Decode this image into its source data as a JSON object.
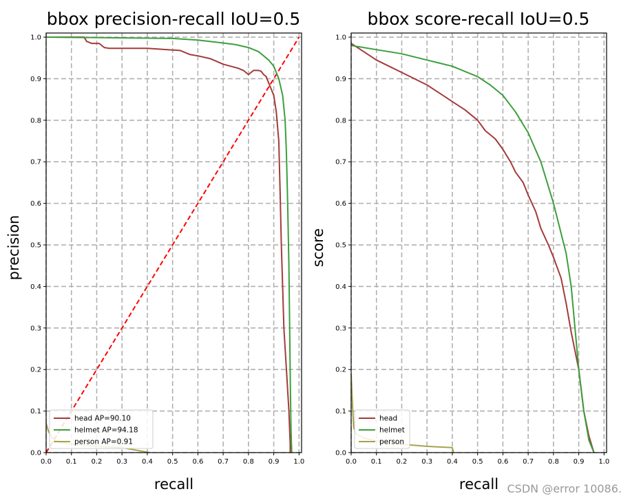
{
  "colors": {
    "head": "#a33a3a",
    "helmet": "#3c9e3c",
    "person": "#a8a24a",
    "diagonal": "#ff0000",
    "grid": "#b0b0b0"
  },
  "watermark": "CSDN @error 10086.",
  "chart_data": [
    {
      "type": "line",
      "title": "bbox precision-recall IoU=0.5",
      "xlabel": "recall",
      "ylabel": "precision",
      "xlim": [
        0,
        1.01
      ],
      "ylim": [
        0,
        1.01
      ],
      "xticks": [
        "0.0",
        "0.1",
        "0.2",
        "0.3",
        "0.4",
        "0.5",
        "0.6",
        "0.7",
        "0.8",
        "0.9",
        "1.0"
      ],
      "yticks": [
        "0.0",
        "0.1",
        "0.2",
        "0.3",
        "0.4",
        "0.5",
        "0.6",
        "0.7",
        "0.8",
        "0.9",
        "1.0"
      ],
      "grid": true,
      "legend_position": "lower-left",
      "diagonal": {
        "x": [
          0,
          1
        ],
        "y": [
          0,
          1
        ],
        "style": "dashed"
      },
      "series": [
        {
          "name": "head AP=90.10",
          "color_key": "head",
          "x": [
            0,
            0.15,
            0.16,
            0.18,
            0.19,
            0.21,
            0.23,
            0.25,
            0.4,
            0.53,
            0.57,
            0.6,
            0.65,
            0.7,
            0.73,
            0.76,
            0.78,
            0.8,
            0.82,
            0.84,
            0.85,
            0.86,
            0.87,
            0.88,
            0.89,
            0.9,
            0.91,
            0.92,
            0.925,
            0.93,
            0.935,
            0.94,
            0.95,
            0.96,
            0.965,
            0.965
          ],
          "y": [
            1.0,
            1.0,
            0.99,
            0.985,
            0.985,
            0.985,
            0.975,
            0.973,
            0.973,
            0.968,
            0.958,
            0.955,
            0.948,
            0.935,
            0.93,
            0.925,
            0.92,
            0.91,
            0.92,
            0.92,
            0.918,
            0.91,
            0.905,
            0.89,
            0.875,
            0.86,
            0.82,
            0.75,
            0.63,
            0.5,
            0.4,
            0.3,
            0.2,
            0.1,
            0.02,
            0.0
          ]
        },
        {
          "name": "helmet AP=94.18",
          "color_key": "helmet",
          "x": [
            0,
            0.35,
            0.5,
            0.6,
            0.7,
            0.75,
            0.8,
            0.84,
            0.86,
            0.88,
            0.9,
            0.92,
            0.935,
            0.945,
            0.95,
            0.955,
            0.96,
            0.963,
            0.966,
            0.968,
            0.97,
            0.971
          ],
          "y": [
            1.0,
            0.998,
            0.997,
            0.993,
            0.986,
            0.982,
            0.975,
            0.965,
            0.955,
            0.945,
            0.93,
            0.9,
            0.86,
            0.8,
            0.72,
            0.6,
            0.45,
            0.3,
            0.15,
            0.06,
            0.02,
            0.0
          ]
        },
        {
          "name": "person AP=0.91",
          "color_key": "person",
          "x": [
            0,
            0.01,
            0.02,
            0.03,
            0.05,
            0.1,
            0.2,
            0.3,
            0.41
          ],
          "y": [
            0.07,
            0.05,
            0.04,
            0.032,
            0.025,
            0.02,
            0.015,
            0.012,
            0.0
          ]
        }
      ]
    },
    {
      "type": "line",
      "title": "bbox score-recall IoU=0.5",
      "xlabel": "recall",
      "ylabel": "score",
      "xlim": [
        0,
        1.01
      ],
      "ylim": [
        0,
        1.01
      ],
      "xticks": [
        "0.0",
        "0.1",
        "0.2",
        "0.3",
        "0.4",
        "0.5",
        "0.6",
        "0.7",
        "0.8",
        "0.9",
        "1.0"
      ],
      "yticks": [
        "0.0",
        "0.1",
        "0.2",
        "0.3",
        "0.4",
        "0.5",
        "0.6",
        "0.7",
        "0.8",
        "0.9",
        "1.0"
      ],
      "grid": true,
      "legend_position": "lower-left",
      "series": [
        {
          "name": "head",
          "color_key": "head",
          "x": [
            0,
            0.05,
            0.1,
            0.15,
            0.2,
            0.25,
            0.3,
            0.35,
            0.4,
            0.45,
            0.5,
            0.53,
            0.57,
            0.6,
            0.63,
            0.65,
            0.68,
            0.7,
            0.73,
            0.75,
            0.78,
            0.8,
            0.83,
            0.85,
            0.87,
            0.9,
            0.92,
            0.94,
            0.96
          ],
          "y": [
            0.985,
            0.965,
            0.945,
            0.93,
            0.915,
            0.9,
            0.885,
            0.865,
            0.845,
            0.825,
            0.8,
            0.775,
            0.755,
            0.73,
            0.7,
            0.675,
            0.65,
            0.62,
            0.58,
            0.54,
            0.5,
            0.47,
            0.42,
            0.36,
            0.29,
            0.2,
            0.1,
            0.04,
            0.0
          ]
        },
        {
          "name": "helmet",
          "color_key": "helmet",
          "x": [
            0,
            0.1,
            0.2,
            0.3,
            0.4,
            0.5,
            0.55,
            0.6,
            0.65,
            0.7,
            0.75,
            0.8,
            0.85,
            0.87,
            0.9,
            0.92,
            0.94,
            0.96
          ],
          "y": [
            0.98,
            0.97,
            0.96,
            0.945,
            0.93,
            0.905,
            0.885,
            0.86,
            0.82,
            0.77,
            0.7,
            0.6,
            0.48,
            0.4,
            0.2,
            0.1,
            0.03,
            0.0
          ]
        },
        {
          "name": "person",
          "color_key": "person",
          "x": [
            0,
            0.005,
            0.01,
            0.02,
            0.05,
            0.1,
            0.2,
            0.3,
            0.4,
            0.405
          ],
          "y": [
            0.19,
            0.12,
            0.06,
            0.045,
            0.035,
            0.028,
            0.02,
            0.015,
            0.012,
            0.0
          ]
        }
      ]
    }
  ]
}
